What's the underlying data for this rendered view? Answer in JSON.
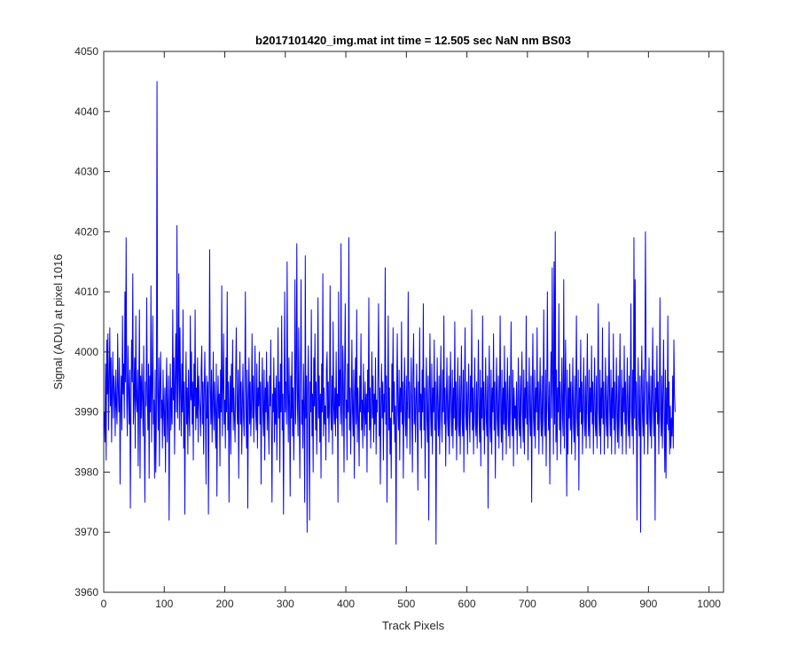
{
  "chart_data": {
    "type": "line",
    "title": "b2017101420_img.mat int time = 12.505 sec  NaN nm BS03",
    "xlabel": "Track Pixels",
    "ylabel": "Signal (ADU) at pixel 1016",
    "xlim": [
      0,
      1024
    ],
    "ylim": [
      3960,
      4050
    ],
    "xticks": [
      0,
      100,
      200,
      300,
      400,
      500,
      600,
      700,
      800,
      900,
      1000
    ],
    "yticks": [
      3960,
      3970,
      3980,
      3990,
      4000,
      4010,
      4020,
      4030,
      4040,
      4050
    ],
    "grid": false,
    "series_color": "#0000ff",
    "series": [
      {
        "x_start": 1,
        "x_step": 1,
        "values": [
          3990,
          3985,
          3998,
          3982,
          4002,
          3993,
          4003,
          3987,
          3995,
          4004,
          3991,
          3999,
          3985,
          3994,
          4000,
          3989,
          3996,
          3993,
          3986,
          3997,
          3991,
          3988,
          4003,
          3994,
          3990,
          3999,
          3978,
          3992,
          3996,
          3987,
          4006,
          3993,
          3998,
          3989,
          4010,
          3995,
          4019,
          3992,
          3986,
          4001,
          3994,
          3988,
          3997,
          3974,
          3991,
          4002,
          3995,
          4013,
          3988,
          3993,
          3999,
          3984,
          4006,
          3992,
          3990,
          3997,
          3981,
          3994,
          4007,
          3979,
          3996,
          3989,
          3998,
          3992,
          3986,
          4001,
          3988,
          3975,
          3995,
          3991,
          4009,
          3993,
          3987,
          3998,
          3979,
          3996,
          3990,
          4011,
          3985,
          3994,
          4006,
          3988,
          3992,
          3979,
          3997,
          3980,
          3989,
          4045,
          3993,
          3987,
          3999,
          3981,
          3995,
          4000,
          3989,
          3992,
          3984,
          3997,
          3990,
          3986,
          3994,
          3980,
          3993,
          3999,
          3985,
          3991,
          3996,
          3972,
          3990,
          3998,
          3987,
          3994,
          3988,
          4007,
          3992,
          3999,
          3983,
          3995,
          4003,
          3990,
          4021,
          3989,
          3996,
          4013,
          3987,
          4004,
          3993,
          3986,
          3998,
          3990,
          4007,
          3984,
          3995,
          3973,
          3991,
          4000,
          3988,
          3994,
          3983,
          3997,
          3990,
          3986,
          4006,
          3992,
          4000,
          3988,
          3995,
          3982,
          3998,
          3991,
          4007,
          3987,
          3994,
          3989,
          3999,
          3985,
          3996,
          3992,
          3990,
          3986,
          3997,
          4001,
          3988,
          3995,
          3983,
          3993,
          4000,
          3991,
          3978,
          3996,
          3989,
          3995,
          3973,
          3991,
          4017,
          3994,
          3988,
          3997,
          3985,
          3992,
          4000,
          3987,
          3995,
          3990,
          3984,
          3998,
          3976,
          3991,
          3996,
          3989,
          3993,
          3981,
          3997,
          3990,
          4011,
          3986,
          3994,
          4003,
          3988,
          3992,
          3984,
          3999,
          3990,
          4010,
          3987,
          3995,
          3975,
          3991,
          3996,
          3983,
          3998,
          3990,
          4002,
          3987,
          3994,
          3989,
          3985,
          3996,
          4004,
          3991,
          3988,
          3997,
          3979,
          3993,
          4000,
          3988,
          3995,
          3983,
          3991,
          3998,
          3989,
          3986,
          3994,
          4010,
          3990,
          3984,
          3997,
          3974,
          3992,
          3999,
          3988,
          3995,
          3986,
          3991,
          4003,
          3989,
          3996,
          3985,
          3993,
          4001,
          3990,
          3987,
          3998,
          3984,
          3994,
          3991,
          4000,
          3988,
          3995,
          3978,
          3992,
          3999,
          3990,
          3986,
          3997,
          3982,
          3994,
          3990,
          4000,
          3987,
          3995,
          3989,
          3983,
          3996,
          3991,
          4002,
          3988,
          3975,
          3993,
          3990,
          3999,
          3985,
          3994,
          3988,
          3996,
          3982,
          3991,
          4004,
          3989,
          3995,
          3980,
          3998,
          3990,
          4006,
          3987,
          3993,
          3973,
          3991,
          4010,
          3990,
          3995,
          3988,
          4015,
          3993,
          3985,
          3999,
          3991,
          3976,
          3996,
          3989,
          4000,
          3986,
          3994,
          3982,
          3990,
          4012,
          3988,
          3995,
          4018,
          3991,
          3986,
          4004,
          3990,
          3979,
          3996,
          4012,
          3988,
          3992,
          3984,
          3998,
          3990,
          3975,
          4016,
          3989,
          3996,
          3970,
          3993,
          4001,
          3988,
          3972,
          3995,
          3990,
          4007,
          3986,
          3993,
          3980,
          3999,
          3991,
          4003,
          3987,
          3995,
          3983,
          3992,
          4009,
          3989,
          3996,
          3985,
          3993,
          3979,
          3998,
          3990,
          4013,
          3986,
          3994,
          3988,
          3991,
          3982,
          3997,
          4000,
          3989,
          3995,
          3985,
          3992,
          4011,
          3990,
          3987,
          3996,
          3983,
          4005,
          3991,
          3988,
          3994,
          3986,
          4000,
          3989,
          3993,
          3975,
          4010,
          3991,
          3997,
          3988,
          4018,
          3990,
          3986,
          4001,
          3994,
          3980,
          3997,
          4008,
          3989,
          3992,
          3982,
          3998,
          3990,
          4019,
          3987,
          3994,
          3983,
          3991,
          4002,
          3990,
          3986,
          3997,
          3979,
          3993,
          3999,
          3988,
          4007,
          3985,
          3994,
          3989,
          3981,
          3996,
          3990,
          4003,
          3987,
          3992,
          3984,
          3998,
          3990,
          3986,
          3995,
          3988,
          3993,
          3980,
          3997,
          3990,
          4009,
          3987,
          3994,
          3984,
          3991,
          4000,
          3989,
          3996,
          3985,
          3993,
          3988,
          3999,
          3983,
          3992,
          3990,
          3996,
          4008,
          3986,
          3994,
          3978,
          3991,
          3998,
          3989,
          3995,
          3982,
          3993,
          3990,
          4014,
          3988,
          3996,
          3975,
          3991,
          4006,
          3987,
          3994,
          3983,
          3989,
          3979,
          3998,
          3990,
          4004,
          3988,
          3995,
          3985,
          3991,
          3968,
          3993,
          4003,
          3990,
          3987,
          3997,
          3982,
          3994,
          3990,
          4005,
          3988,
          3995,
          3979,
          3992,
          3999,
          3989,
          3986,
          3996,
          3984,
          3993,
          4010,
          3989,
          3995,
          3983,
          3991,
          3999,
          3990,
          3980,
          3997,
          4003,
          3988,
          3994,
          3985,
          3991,
          3998,
          3989,
          3977,
          3995,
          3990,
          4004,
          3987,
          3993,
          3984,
          3997,
          3990,
          4008,
          3987,
          3994,
          3979,
          3992,
          3999,
          3989,
          3985,
          3996,
          3972,
          3993,
          4003,
          3990,
          3986,
          3998,
          3983,
          3994,
          3990,
          4002,
          3987,
          3995,
          3968,
          3991,
          3999,
          3989,
          3986,
          3996,
          3983,
          3993,
          4001,
          3989,
          3985,
          3997,
          3990,
          4006,
          3988,
          3994,
          3981,
          3991,
          3999,
          3989,
          3986,
          3996,
          3983,
          3993,
          4000,
          3990,
          3986,
          3997,
          3984,
          3994,
          3989,
          4005,
          3987,
          3995,
          3982,
          3991,
          3999,
          3988,
          3986,
          3996,
          3983,
          3993,
          4001,
          3989,
          3986,
          3997,
          3980,
          3994,
          4004,
          3990,
          3987,
          3995,
          3983,
          3992,
          3998,
          3989,
          3985,
          3996,
          3990,
          4007,
          3987,
          3994,
          3983,
          3991,
          3999,
          3988,
          3986,
          3995,
          3984,
          3993,
          4002,
          3989,
          3985,
          3997,
          3981,
          3994,
          3989,
          4006,
          3987,
          3995,
          3983,
          3991,
          3999,
          3989,
          3986,
          3996,
          3974,
          3993,
          4001,
          3988,
          3985,
          3997,
          3983,
          3994,
          3990,
          4003,
          3987,
          3995,
          3979,
          3992,
          3999,
          3989,
          3986,
          3996,
          3984,
          3993,
          4006,
          3989,
          3985,
          3997,
          3982,
          3994,
          3988,
          4001,
          3987,
          3995,
          3983,
          3991,
          3999,
          3989,
          3986,
          3996,
          3984,
          3993,
          4005,
          3990,
          3986,
          3997,
          3981,
          3994,
          3989,
          3991,
          3987,
          3995,
          3983,
          3991,
          3999,
          3988,
          3986,
          3996,
          3984,
          3993,
          4000,
          3990,
          3985,
          3997,
          3983,
          3994,
          3989,
          4006,
          3988,
          3995,
          3982,
          3991,
          3999,
          3989,
          3986,
          3996,
          3975,
          3993,
          4003,
          3989,
          3986,
          3997,
          3984,
          3994,
          3990,
          4004,
          3987,
          3995,
          3983,
          3992,
          3999,
          3989,
          3986,
          3996,
          3983,
          3993,
          4007,
          3989,
          3986,
          3997,
          3981,
          3994,
          4010,
          3991,
          3987,
          3995,
          3978,
          3992,
          4000,
          3989,
          4014,
          3996,
          3983,
          4015,
          3988,
          4020,
          3985,
          3997,
          3982,
          3994,
          3990,
          4008,
          3987,
          3995,
          3983,
          3991,
          3999,
          3989,
          3986,
          4012,
          3984,
          3993,
          4002,
          3990,
          3976,
          3997,
          3983,
          3994,
          3989,
          3998,
          3987,
          3995,
          3983,
          3991,
          3999,
          3988,
          3985,
          3996,
          3982,
          3993,
          4006,
          3989,
          3986,
          3997,
          3977,
          3994,
          3990,
          4002,
          3988,
          3995,
          3983,
          3991,
          3999,
          3989,
          3986,
          3996,
          3984,
          3993,
          4003,
          3990,
          3986,
          3997,
          3984,
          3994,
          3990,
          4001,
          3988,
          3995,
          3983,
          3992,
          3999,
          3988,
          3986,
          3996,
          3984,
          3993,
          4008,
          3990,
          3986,
          3997,
          3983,
          3994,
          3989,
          4004,
          3988,
          3995,
          3983,
          3991,
          3999,
          3989,
          3986,
          3996,
          3984,
          3993,
          4005,
          3990,
          3986,
          3997,
          3983,
          3994,
          3989,
          4003,
          3987,
          3995,
          3983,
          3991,
          3999,
          3989,
          3985,
          3996,
          3984,
          3993,
          4003,
          3989,
          3986,
          3997,
          3983,
          3994,
          3990,
          4001,
          3988,
          3995,
          3983,
          3991,
          3999,
          3989,
          3986,
          3996,
          3984,
          3993,
          4008,
          3990,
          3986,
          3997,
          3983,
          4019,
          3989,
          4012,
          3987,
          3995,
          3972,
          3991,
          3999,
          3989,
          3986,
          3996,
          3970,
          3993,
          4001,
          3990,
          3986,
          3997,
          3983,
          3994,
          4020,
          4000,
          3988,
          3995,
          3983,
          3991,
          3999,
          3989,
          3986,
          3996,
          3984,
          3993,
          4004,
          3990,
          3986,
          3997,
          3972,
          3994,
          3990,
          4001,
          3988,
          3995,
          3983,
          3991,
          4009,
          3989,
          3986,
          3996,
          3984,
          3993,
          4002,
          3989,
          3980,
          3997,
          3979,
          3994,
          3988,
          4006,
          3987,
          3995,
          3983,
          3991,
          3984,
          3989,
          3986,
          3996,
          3984,
          4002,
          3993,
          3990
        ]
      }
    ]
  }
}
